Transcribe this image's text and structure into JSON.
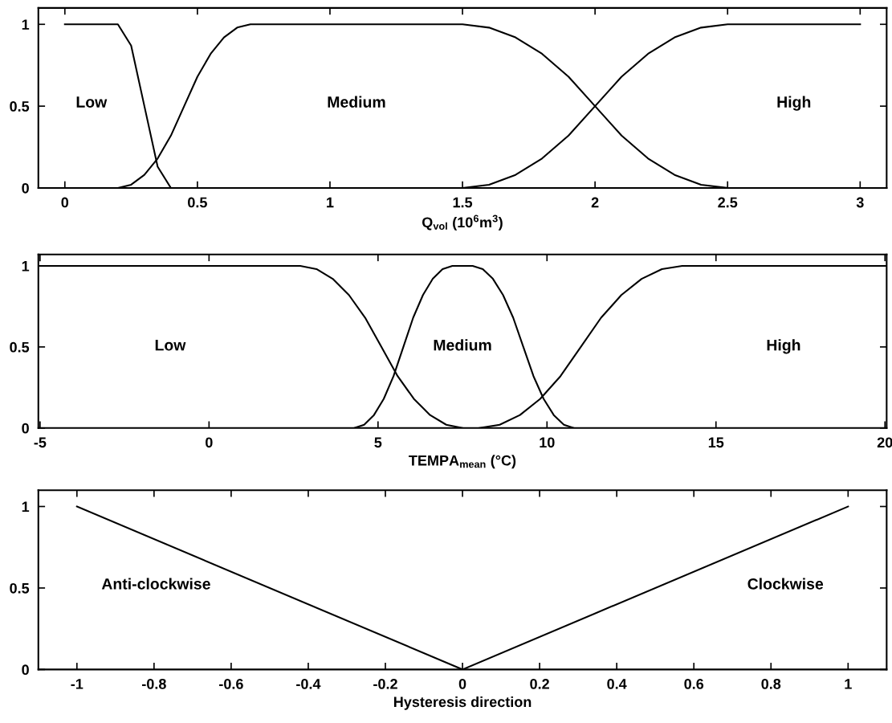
{
  "chart_data": [
    {
      "type": "line",
      "xlabel": "Q$_{vol}$ (10$^{6}$m$^{3}$)",
      "xlim": [
        -0.1,
        3.1
      ],
      "ylim": [
        0,
        1.1
      ],
      "xticks": [
        0,
        0.5,
        1,
        1.5,
        2,
        2.5,
        3
      ],
      "yticks": [
        0,
        0.5,
        1
      ],
      "grid": false,
      "marker": "none",
      "line_style": "solid",
      "series": [
        {
          "color": "#000000",
          "x": [
            0,
            0.2,
            0.25,
            0.3,
            0.35,
            0.4
          ],
          "values": [
            1,
            1,
            0.87,
            0.5,
            0.13,
            0
          ]
        },
        {
          "color": "#000000",
          "x": [
            0.2,
            0.25,
            0.3,
            0.35,
            0.4,
            0.45,
            0.5,
            0.55,
            0.6,
            0.65,
            0.7,
            1.5,
            1.6,
            1.7,
            1.8,
            1.9,
            2,
            2.1,
            2.2,
            2.3,
            2.4,
            2.5
          ],
          "values": [
            0,
            0.02,
            0.08,
            0.18,
            0.32,
            0.5,
            0.68,
            0.82,
            0.92,
            0.98,
            1,
            1,
            0.98,
            0.92,
            0.82,
            0.68,
            0.5,
            0.32,
            0.18,
            0.08,
            0.02,
            0
          ]
        },
        {
          "color": "#000000",
          "x": [
            1.5,
            1.6,
            1.7,
            1.8,
            1.9,
            2,
            2.1,
            2.2,
            2.3,
            2.4,
            2.5,
            3
          ],
          "values": [
            0,
            0.02,
            0.08,
            0.18,
            0.32,
            0.5,
            0.68,
            0.82,
            0.92,
            0.98,
            1,
            1
          ]
        }
      ],
      "annotations": [
        "Low",
        "Medium",
        "High"
      ]
    },
    {
      "type": "line",
      "xlabel": "TEMPA$_{mean}$ (°C)",
      "xlim": [
        -5.05,
        20.05
      ],
      "ylim": [
        0,
        1.07
      ],
      "xticks": [
        -5,
        0,
        5,
        10,
        15,
        20
      ],
      "yticks": [
        0,
        0.5,
        1
      ],
      "grid": false,
      "marker": "none",
      "line_style": "solid",
      "series": [
        {
          "color": "#000000",
          "x": [
            -5,
            2.7,
            3.18,
            3.66,
            4.14,
            4.62,
            5.1,
            5.58,
            6.06,
            6.54,
            7.02,
            7.5
          ],
          "values": [
            1,
            1,
            0.98,
            0.92,
            0.82,
            0.68,
            0.5,
            0.32,
            0.18,
            0.08,
            0.02,
            0
          ]
        },
        {
          "color": "#000000",
          "x": [
            4.3,
            4.59,
            4.88,
            5.17,
            5.46,
            5.75,
            6.04,
            6.33,
            6.62,
            6.91,
            7.2,
            7.8,
            8.1,
            8.4,
            8.7,
            9.0,
            9.3,
            9.6,
            9.9,
            10.2,
            10.5,
            10.8
          ],
          "values": [
            0,
            0.02,
            0.08,
            0.18,
            0.32,
            0.5,
            0.68,
            0.82,
            0.92,
            0.98,
            1,
            1,
            0.98,
            0.92,
            0.82,
            0.68,
            0.5,
            0.32,
            0.18,
            0.08,
            0.02,
            0
          ]
        },
        {
          "color": "#000000",
          "x": [
            8,
            8.6,
            9.2,
            9.8,
            10.4,
            11,
            11.6,
            12.2,
            12.8,
            13.4,
            14,
            20
          ],
          "values": [
            0,
            0.02,
            0.08,
            0.18,
            0.32,
            0.5,
            0.68,
            0.82,
            0.92,
            0.98,
            1,
            1
          ]
        }
      ],
      "annotations": [
        "Low",
        "Medium",
        "High"
      ]
    },
    {
      "type": "line",
      "xlabel": "Hysteresis direction",
      "xlim": [
        -1.1,
        1.1
      ],
      "ylim": [
        0,
        1.1
      ],
      "xticks": [
        -1,
        -0.8,
        -0.6,
        -0.4,
        -0.2,
        0,
        0.2,
        0.4,
        0.6,
        0.8,
        1
      ],
      "yticks": [
        0,
        0.5,
        1
      ],
      "grid": false,
      "marker": "none",
      "line_style": "solid",
      "series": [
        {
          "color": "#000000",
          "x": [
            -1,
            0
          ],
          "values": [
            1,
            0
          ]
        },
        {
          "color": "#000000",
          "x": [
            0,
            1
          ],
          "values": [
            0,
            1
          ]
        }
      ],
      "annotations": [
        "Anti-clockwise",
        "Clockwise"
      ]
    }
  ]
}
